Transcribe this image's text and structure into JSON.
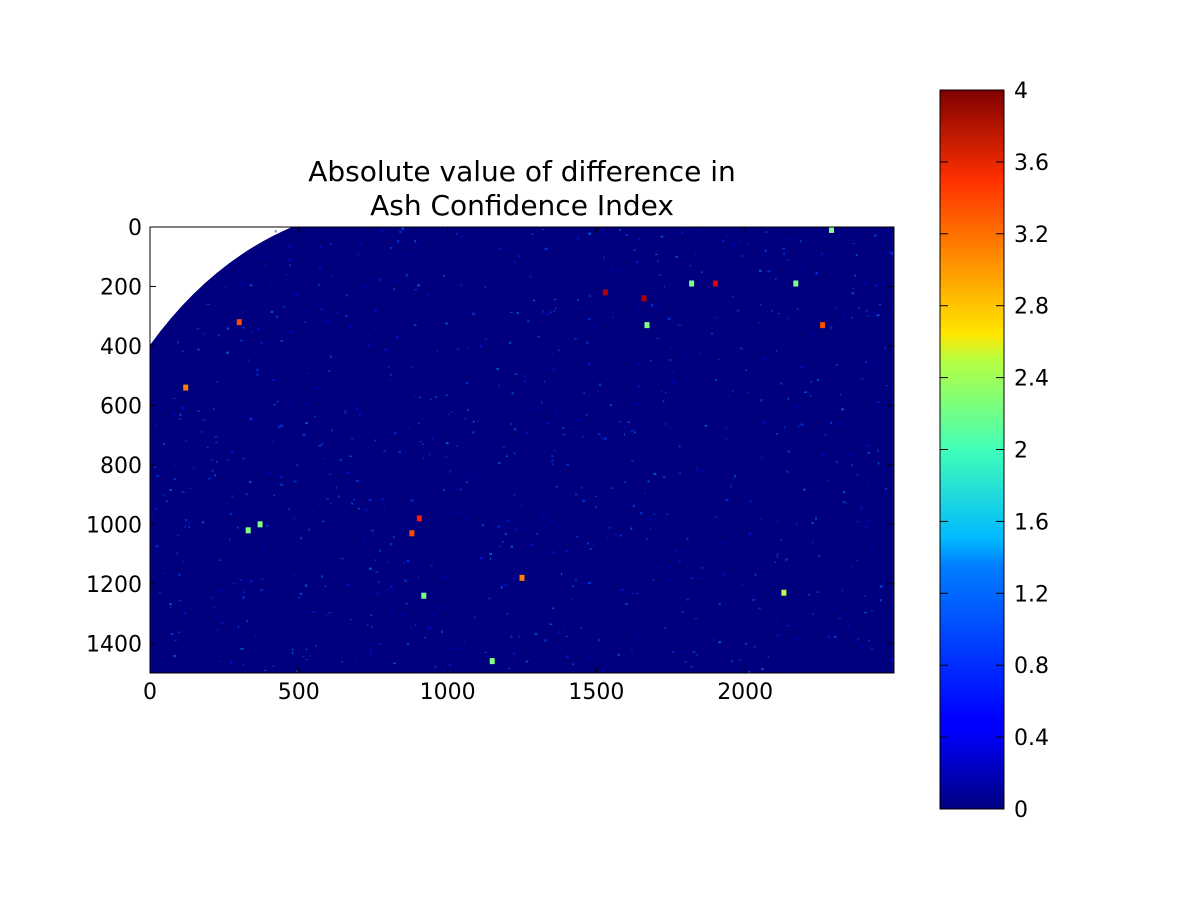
{
  "chart_data": {
    "type": "heatmap",
    "title": "Absolute value of difference in\nAsh Confidence Index",
    "title_lines": [
      "Absolute value of difference in",
      "Ash Confidence Index"
    ],
    "xlabel": "",
    "ylabel": "",
    "xlim": [
      0,
      2500
    ],
    "ylim": [
      1500,
      0
    ],
    "x_ticks": [
      0,
      500,
      1000,
      1500,
      2000
    ],
    "y_ticks": [
      0,
      200,
      400,
      600,
      800,
      1000,
      1200,
      1400
    ],
    "x_tick_labels": [
      "0",
      "500",
      "1000",
      "1500",
      "2000"
    ],
    "y_tick_labels": [
      "0",
      "200",
      "400",
      "600",
      "800",
      "1000",
      "1200",
      "1400"
    ],
    "colormap": "jet",
    "colorbar": {
      "range": [
        0,
        4
      ],
      "ticks": [
        0,
        0.4,
        0.8,
        1.2,
        1.6,
        2,
        2.4,
        2.8,
        3.2,
        3.6,
        4
      ],
      "tick_labels": [
        "0",
        "0.4",
        "0.8",
        "1.2",
        "1.6",
        "2",
        "2.4",
        "2.8",
        "3.2",
        "3.6",
        "4"
      ]
    },
    "background_value": 0,
    "no_data_region": "top-left corner outside satellite disk (white)",
    "features": [
      {
        "x": 880,
        "y": 1030,
        "value": 3.2
      },
      {
        "x": 905,
        "y": 980,
        "value": 3.4
      },
      {
        "x": 920,
        "y": 1240,
        "value": 2.0
      },
      {
        "x": 1660,
        "y": 240,
        "value": 3.8
      },
      {
        "x": 1530,
        "y": 220,
        "value": 3.8
      },
      {
        "x": 1900,
        "y": 190,
        "value": 3.6
      },
      {
        "x": 1820,
        "y": 190,
        "value": 2.0
      },
      {
        "x": 2170,
        "y": 190,
        "value": 2.0
      },
      {
        "x": 2260,
        "y": 330,
        "value": 3.2
      },
      {
        "x": 2290,
        "y": 10,
        "value": 2.0
      },
      {
        "x": 1250,
        "y": 1180,
        "value": 3.0
      },
      {
        "x": 1150,
        "y": 1460,
        "value": 2.0
      },
      {
        "x": 300,
        "y": 320,
        "value": 3.2
      },
      {
        "x": 120,
        "y": 540,
        "value": 3.0
      },
      {
        "x": 330,
        "y": 1020,
        "value": 2.0
      },
      {
        "x": 370,
        "y": 1000,
        "value": 2.0
      },
      {
        "x": 1670,
        "y": 330,
        "value": 2.0
      },
      {
        "x": 2130,
        "y": 1230,
        "value": 2.2
      }
    ]
  }
}
